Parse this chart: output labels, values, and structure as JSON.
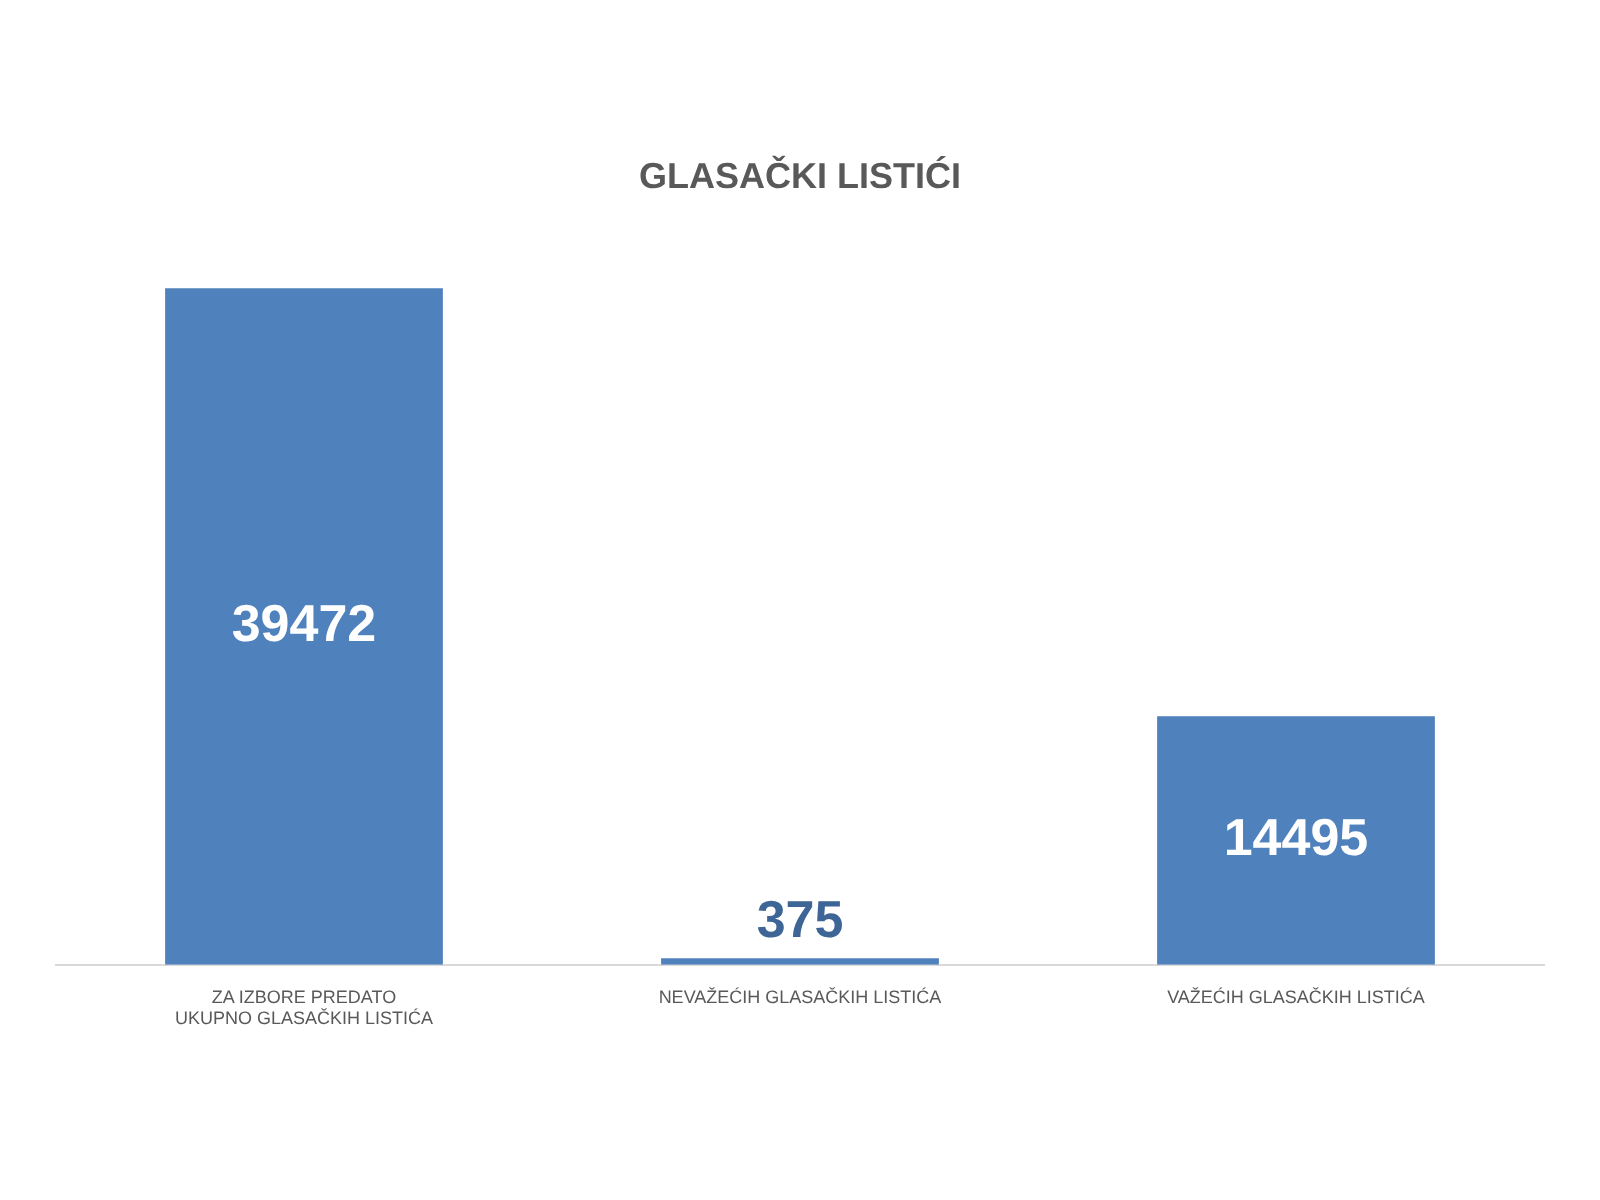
{
  "chart_data": {
    "type": "bar",
    "title": "GLASAČKI LISTIĆI",
    "categories": [
      "ZA IZBORE PREDATO UKUPNO GLASAČKIH LISTIĆA",
      "NEVAŽEĆIH GLASAČKIH LISTIĆA",
      "VAŽEĆIH GLASAČKIH LISTIĆA"
    ],
    "values": [
      39472,
      375,
      14495
    ],
    "color": "#4f81bd",
    "data_labels": true
  }
}
